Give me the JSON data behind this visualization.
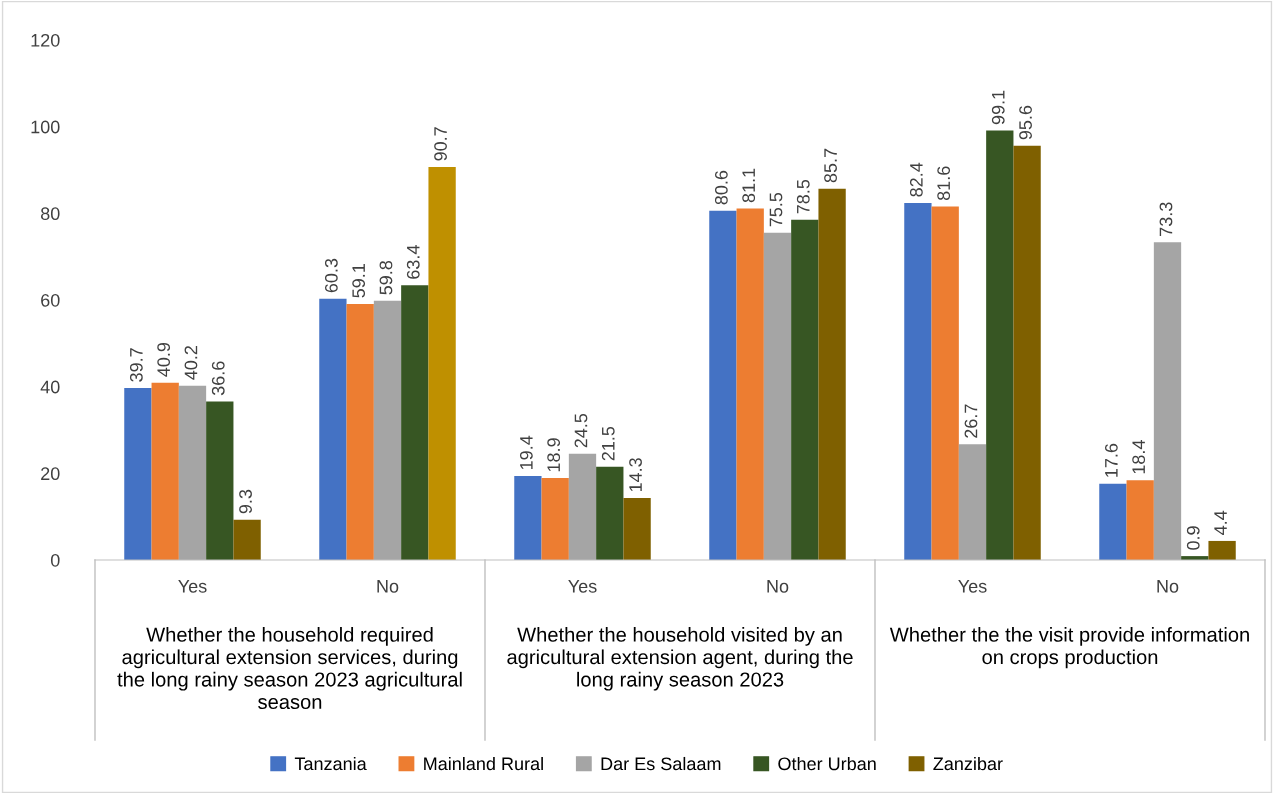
{
  "chart_data": {
    "type": "bar",
    "categories": [
      "Yes",
      "No",
      "Yes",
      "No",
      "Yes",
      "No"
    ],
    "annotations": [
      "Whether the household required agricultural extension services, during the long rainy season 2023 agricultural season",
      "Whether the household visited by an agricultural extension agent, during the long rainy season 2023",
      "Whether the the visit provide information on crops production"
    ],
    "series": [
      {
        "name": "Tanzania",
        "color": "#4472c4",
        "values": [
          39.7,
          60.3,
          19.4,
          80.6,
          82.4,
          17.6
        ]
      },
      {
        "name": "Mainland Rural",
        "color": "#ed7d31",
        "values": [
          40.9,
          59.1,
          18.9,
          81.1,
          81.6,
          18.4
        ]
      },
      {
        "name": "Dar Es Salaam",
        "color": "#a5a5a5",
        "values": [
          40.2,
          59.8,
          24.5,
          75.5,
          26.7,
          73.3
        ]
      },
      {
        "name": "Other Urban",
        "color": "#375623",
        "values": [
          36.6,
          63.4,
          21.5,
          78.5,
          99.1,
          0.9
        ]
      },
      {
        "name": "Zanzibar",
        "color": "#7f6000",
        "colors": [
          "#7f6000",
          "#bf9000",
          "#7f6000",
          "#7f6000",
          "#7f6000",
          "#7f6000"
        ],
        "values": [
          9.3,
          90.7,
          14.3,
          85.7,
          95.6,
          4.4
        ]
      }
    ],
    "ylim": [
      0,
      120
    ],
    "yticks": [
      0,
      20,
      40,
      60,
      80,
      100,
      120
    ],
    "data_labels": true,
    "legend": "bottom",
    "grid": false
  }
}
